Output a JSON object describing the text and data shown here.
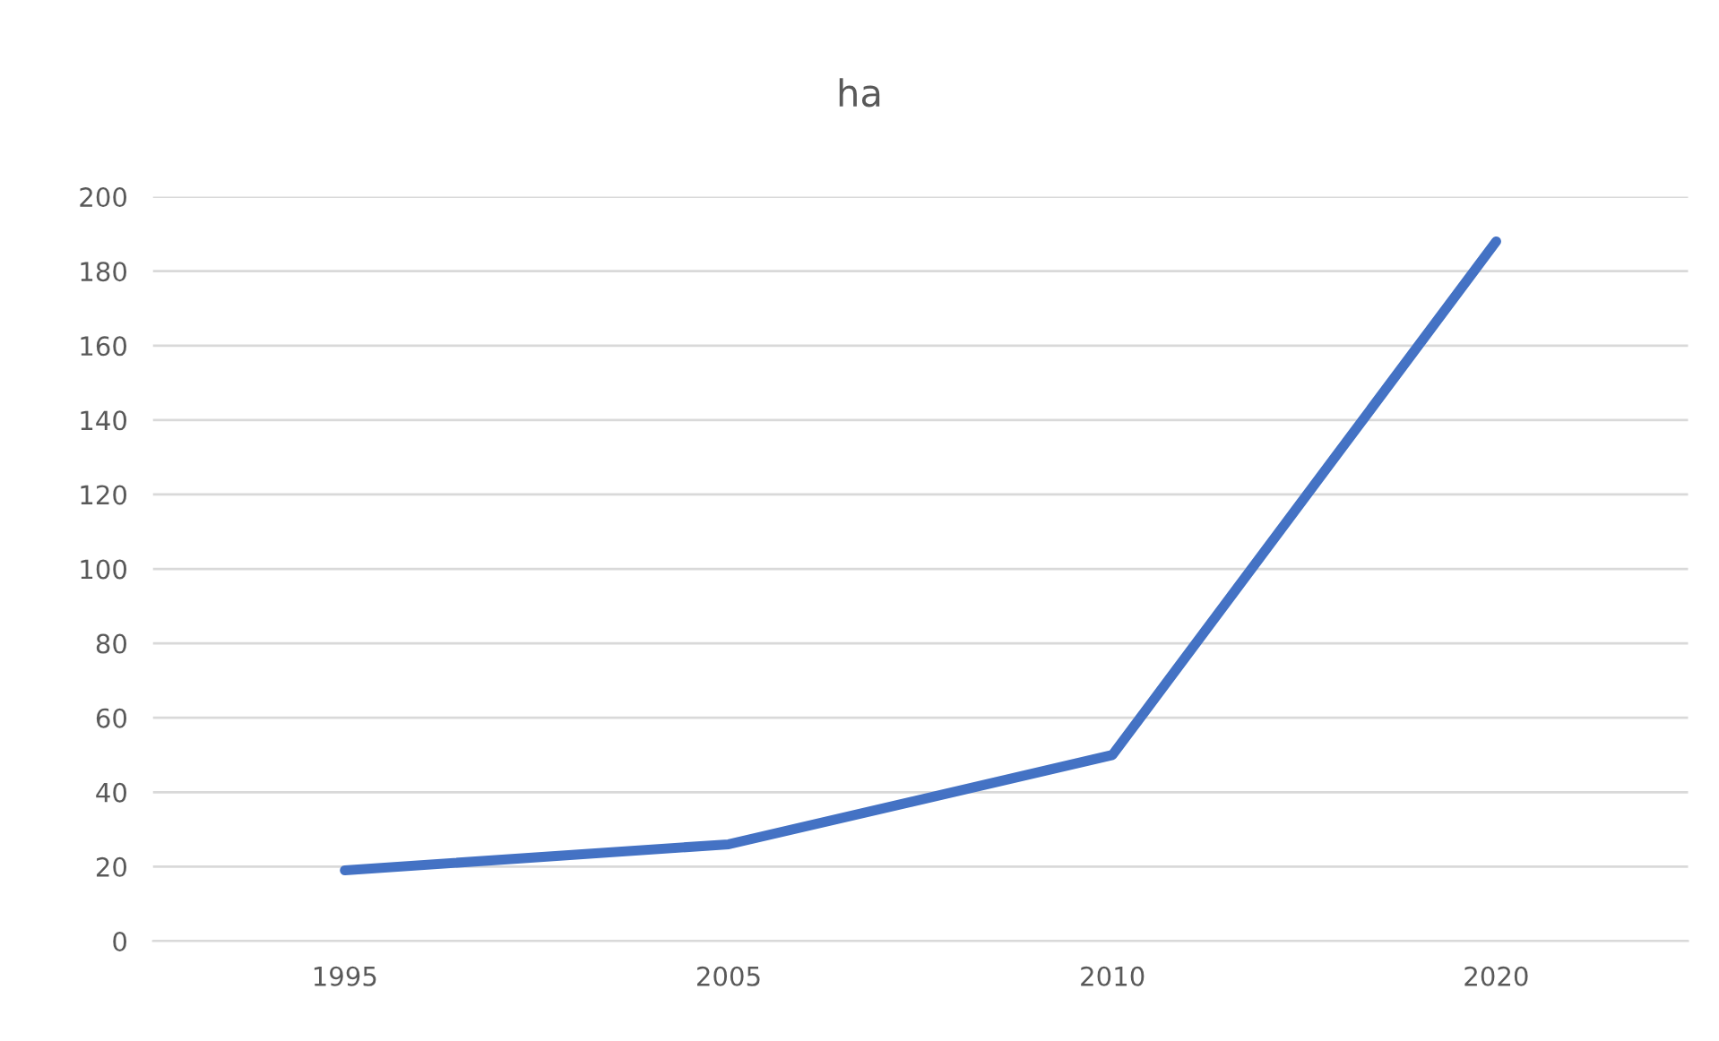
{
  "chart_data": {
    "type": "line",
    "title": "ha",
    "categories": [
      "1995",
      "2005",
      "2010",
      "2020"
    ],
    "series": [
      {
        "color": "#4472c4",
        "values": [
          19,
          26,
          50,
          188
        ]
      }
    ],
    "ylim": [
      0,
      200
    ],
    "yticks": [
      0,
      20,
      40,
      60,
      80,
      100,
      120,
      140,
      160,
      180,
      200
    ],
    "grid": "y",
    "legend": false,
    "marker": "none",
    "line_style": "solid"
  }
}
